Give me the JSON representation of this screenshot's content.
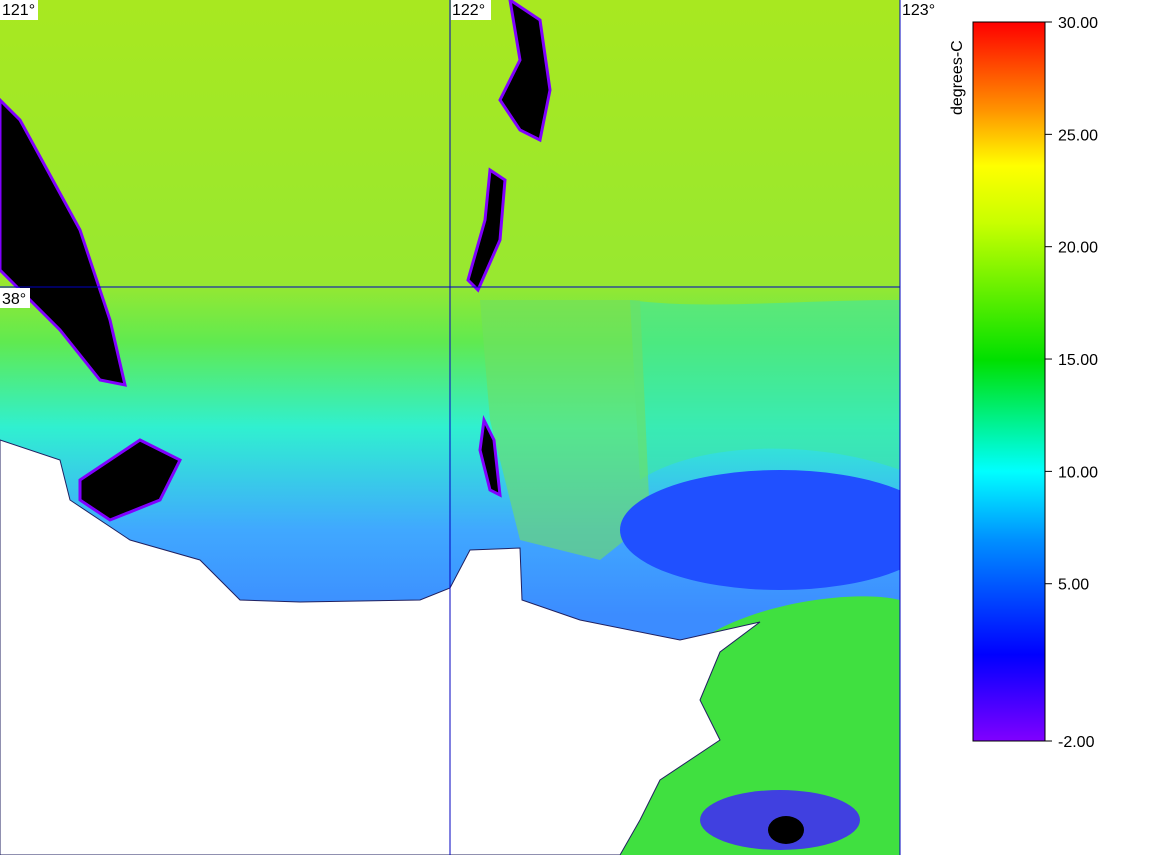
{
  "map": {
    "longitudes": [
      "121°",
      "122°",
      "123°"
    ],
    "latitudes": [
      "38°"
    ]
  },
  "colorbar": {
    "label": "degrees-C",
    "ticks": [
      {
        "value": 30,
        "label": "30.00"
      },
      {
        "value": 25,
        "label": "25.00"
      },
      {
        "value": 20,
        "label": "20.00"
      },
      {
        "value": 15,
        "label": "15.00"
      },
      {
        "value": 10,
        "label": "10.00"
      },
      {
        "value": 5,
        "label": "5.00"
      },
      {
        "value": -2,
        "label": "-2.00"
      }
    ]
  }
}
